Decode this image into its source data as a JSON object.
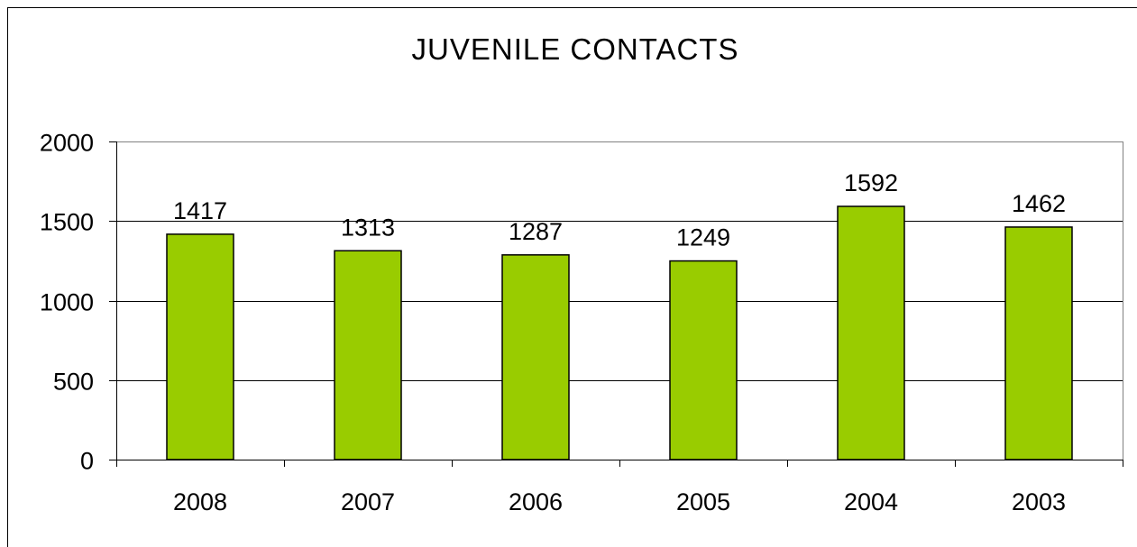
{
  "chart_data": {
    "type": "bar",
    "title": "JUVENILE CONTACTS",
    "xlabel": "",
    "ylabel": "",
    "categories": [
      "2008",
      "2007",
      "2006",
      "2005",
      "2004",
      "2003"
    ],
    "values": [
      1417,
      1313,
      1287,
      1249,
      1592,
      1462
    ],
    "data_labels": [
      "1417",
      "1313",
      "1287",
      "1249",
      "1592",
      "1462"
    ],
    "ylim": [
      0,
      2000
    ],
    "yticks": [
      0,
      500,
      1000,
      1500,
      2000
    ],
    "ytick_labels": [
      "0",
      "500",
      "1000",
      "1500",
      "2000"
    ],
    "grid": true,
    "legend": "none",
    "bar_color": "#99CC00",
    "bar_outline_color": "#000000"
  }
}
